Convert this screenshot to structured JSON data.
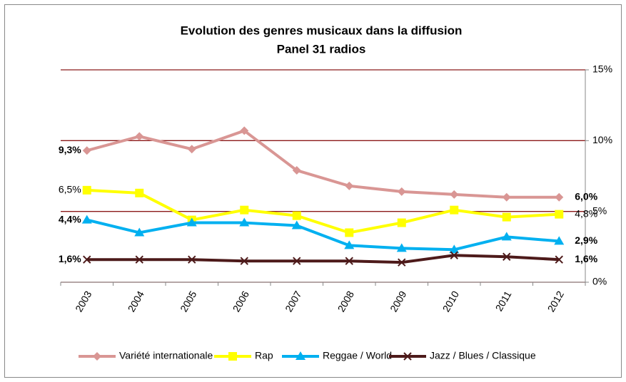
{
  "chart_data": {
    "type": "line",
    "title": "Evolution des genres musicaux dans la diffusion",
    "subtitle": "Panel 31 radios",
    "categories": [
      "2003",
      "2004",
      "2005",
      "2006",
      "2007",
      "2008",
      "2009",
      "2010",
      "2011",
      "2012"
    ],
    "series": [
      {
        "name": "Variété internationale",
        "color": "#d99694",
        "marker": "diamond",
        "label_color": "#953735",
        "label_bold": true,
        "values": [
          9.3,
          10.3,
          9.4,
          10.7,
          7.9,
          6.8,
          6.4,
          6.2,
          6.0,
          6.0
        ],
        "value_labels": [
          "9,3%",
          null,
          null,
          null,
          null,
          null,
          null,
          null,
          null,
          "6,0%"
        ]
      },
      {
        "name": "Rap",
        "color": "#ffff00",
        "marker": "square",
        "label_color": "#000000",
        "label_bold": false,
        "values": [
          6.5,
          6.3,
          4.4,
          5.1,
          4.7,
          3.5,
          4.2,
          5.1,
          4.6,
          4.8
        ],
        "value_labels": [
          "6,5%",
          null,
          null,
          null,
          null,
          null,
          null,
          null,
          null,
          "4,8%"
        ]
      },
      {
        "name": "Reggae / World",
        "color": "#00b0f0",
        "marker": "triangle",
        "label_color": "#0070c0",
        "label_bold": true,
        "values": [
          4.4,
          3.5,
          4.2,
          4.2,
          4.0,
          2.6,
          2.4,
          2.3,
          3.2,
          2.9
        ],
        "value_labels": [
          "4,4%",
          null,
          null,
          null,
          null,
          null,
          null,
          null,
          null,
          "2,9%"
        ]
      },
      {
        "name": "Jazz / Blues / Classique",
        "color": "#4d1a1a",
        "marker": "x",
        "label_color": "#953735",
        "label_bold": true,
        "values": [
          1.6,
          1.6,
          1.6,
          1.5,
          1.5,
          1.5,
          1.4,
          1.9,
          1.8,
          1.6
        ],
        "value_labels": [
          "1,6%",
          null,
          null,
          null,
          null,
          null,
          null,
          null,
          null,
          "1,6%"
        ]
      }
    ],
    "ylim": [
      0,
      15
    ],
    "yticks": [
      {
        "value": 0,
        "label": "0%"
      },
      {
        "value": 5,
        "label": "5%"
      },
      {
        "value": 10,
        "label": "10%"
      },
      {
        "value": 15,
        "label": "15%"
      }
    ],
    "grid": true,
    "grid_color": "#8b1a1a",
    "y_axis_side": "right",
    "legend": "bottom"
  }
}
